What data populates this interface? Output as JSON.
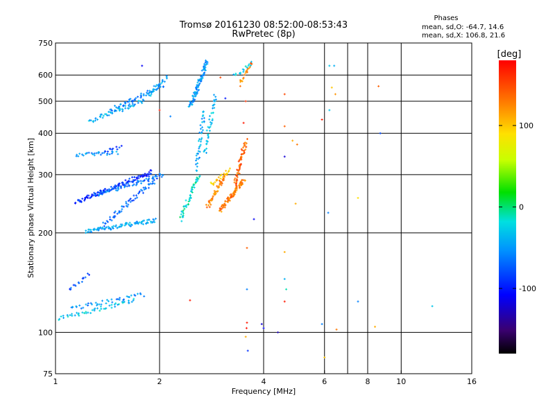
{
  "chart_data": {
    "type": "scatter",
    "title": "Tromsø 20161230 08:52:00-08:53:43",
    "subtitle": "RwPretec (8p)",
    "xlabel": "Frequency [MHz]",
    "ylabel": "Stationary phase Virtual Height [km]",
    "x_scale": "log",
    "y_scale": "log",
    "xlim": [
      1,
      16
    ],
    "ylim": [
      75,
      750
    ],
    "x_ticks": [
      1,
      2,
      4,
      6,
      8,
      10,
      16
    ],
    "x_tick_labels": [
      "1",
      "2",
      "4",
      "6",
      "8",
      "10",
      "16"
    ],
    "x_grid": [
      2,
      4,
      6,
      7,
      8,
      10
    ],
    "y_ticks": [
      75,
      100,
      200,
      300,
      400,
      500,
      600,
      750
    ],
    "y_tick_labels": [
      "75",
      "100",
      "200",
      "300",
      "400",
      "500",
      "600",
      "750"
    ],
    "grid": true,
    "phase_stats": {
      "title": "Phases",
      "line_o": "mean, sd,O: -64.7, 14.6",
      "line_x": "mean, sd,X: 106.8, 21.6"
    },
    "colorbar": {
      "label": "[deg]",
      "range": [
        -180,
        180
      ],
      "tick_values": [
        100,
        0,
        -100
      ],
      "tick_labels": [
        "100",
        "0",
        "-100"
      ]
    },
    "traces": [
      {
        "x_start": 1.22,
        "x_end": 1.95,
        "h_start": 202,
        "h_end": 218,
        "phase": -45,
        "n": 90
      },
      {
        "x_start": 1.38,
        "x_end": 1.95,
        "h_start": 212,
        "h_end": 290,
        "phase": -70,
        "n": 60
      },
      {
        "x_start": 1.15,
        "x_end": 1.9,
        "h_start": 248,
        "h_end": 305,
        "phase": -92,
        "n": 110
      },
      {
        "x_start": 1.3,
        "x_end": 2.05,
        "h_start": 260,
        "h_end": 300,
        "phase": -65,
        "n": 70
      },
      {
        "x_start": 1.15,
        "x_end": 1.5,
        "h_start": 345,
        "h_end": 350,
        "phase": -50,
        "n": 30
      },
      {
        "x_start": 1.4,
        "x_end": 1.55,
        "h_start": 355,
        "h_end": 365,
        "phase": -90,
        "n": 10
      },
      {
        "x_start": 1.25,
        "x_end": 1.8,
        "h_start": 435,
        "h_end": 500,
        "phase": -40,
        "n": 55
      },
      {
        "x_start": 1.45,
        "x_end": 2.05,
        "h_start": 470,
        "h_end": 560,
        "phase": -60,
        "n": 55
      },
      {
        "x_start": 1.85,
        "x_end": 2.1,
        "h_start": 520,
        "h_end": 590,
        "phase": -45,
        "n": 25
      },
      {
        "x_start": 2.45,
        "x_end": 2.75,
        "h_start": 480,
        "h_end": 660,
        "phase": -50,
        "n": 90
      },
      {
        "x_start": 2.7,
        "x_end": 2.9,
        "h_start": 350,
        "h_end": 520,
        "phase": -35,
        "n": 40
      },
      {
        "x_start": 2.3,
        "x_end": 2.6,
        "h_start": 220,
        "h_end": 300,
        "phase": -15,
        "n": 50
      },
      {
        "x_start": 2.55,
        "x_end": 2.7,
        "h_start": 310,
        "h_end": 470,
        "phase": -45,
        "n": 40
      },
      {
        "x_start": 2.75,
        "x_end": 3.1,
        "h_start": 240,
        "h_end": 300,
        "phase": 125,
        "n": 50
      },
      {
        "x_start": 3.0,
        "x_end": 3.5,
        "h_start": 235,
        "h_end": 290,
        "phase": 130,
        "n": 80
      },
      {
        "x_start": 3.3,
        "x_end": 3.55,
        "h_start": 280,
        "h_end": 380,
        "phase": 140,
        "n": 60
      },
      {
        "x_start": 2.8,
        "x_end": 3.2,
        "h_start": 280,
        "h_end": 310,
        "phase": 95,
        "n": 25
      },
      {
        "x_start": 3.4,
        "x_end": 3.7,
        "h_start": 560,
        "h_end": 650,
        "phase": 130,
        "n": 20
      },
      {
        "x_start": 3.3,
        "x_end": 3.7,
        "h_start": 600,
        "h_end": 650,
        "phase": -30,
        "n": 15
      },
      {
        "x_start": 1.02,
        "x_end": 1.7,
        "h_start": 110,
        "h_end": 125,
        "phase": -30,
        "n": 50
      },
      {
        "x_start": 1.1,
        "x_end": 1.8,
        "h_start": 118,
        "h_end": 130,
        "phase": -55,
        "n": 40
      },
      {
        "x_start": 1.1,
        "x_end": 1.25,
        "h_start": 135,
        "h_end": 150,
        "phase": -80,
        "n": 15
      }
    ],
    "scattered_points": [
      {
        "x": 1.78,
        "y": 640,
        "phase": -110
      },
      {
        "x": 2.0,
        "y": 470,
        "phase": 170
      },
      {
        "x": 2.15,
        "y": 450,
        "phase": -60
      },
      {
        "x": 3.0,
        "y": 590,
        "phase": 150
      },
      {
        "x": 3.1,
        "y": 510,
        "phase": -100
      },
      {
        "x": 3.55,
        "y": 500,
        "phase": 160
      },
      {
        "x": 3.5,
        "y": 430,
        "phase": 170
      },
      {
        "x": 3.75,
        "y": 220,
        "phase": -110
      },
      {
        "x": 3.58,
        "y": 180,
        "phase": 140
      },
      {
        "x": 3.58,
        "y": 135,
        "phase": -60
      },
      {
        "x": 3.58,
        "y": 107,
        "phase": 170
      },
      {
        "x": 3.57,
        "y": 103,
        "phase": 175
      },
      {
        "x": 3.6,
        "y": 88,
        "phase": -90
      },
      {
        "x": 3.55,
        "y": 97,
        "phase": 110
      },
      {
        "x": 3.95,
        "y": 106,
        "phase": -120
      },
      {
        "x": 4.0,
        "y": 103,
        "phase": -110
      },
      {
        "x": 4.4,
        "y": 100,
        "phase": -130
      },
      {
        "x": 2.45,
        "y": 125,
        "phase": 170
      },
      {
        "x": 4.6,
        "y": 525,
        "phase": 150
      },
      {
        "x": 4.6,
        "y": 420,
        "phase": 140
      },
      {
        "x": 4.85,
        "y": 380,
        "phase": 110
      },
      {
        "x": 5.0,
        "y": 370,
        "phase": 130
      },
      {
        "x": 4.6,
        "y": 340,
        "phase": -120
      },
      {
        "x": 4.95,
        "y": 245,
        "phase": 110
      },
      {
        "x": 4.6,
        "y": 175,
        "phase": 110
      },
      {
        "x": 4.6,
        "y": 145,
        "phase": -40
      },
      {
        "x": 4.65,
        "y": 135,
        "phase": -10
      },
      {
        "x": 4.6,
        "y": 124,
        "phase": 170
      },
      {
        "x": 5.9,
        "y": 440,
        "phase": 170
      },
      {
        "x": 6.2,
        "y": 640,
        "phase": -30
      },
      {
        "x": 6.4,
        "y": 640,
        "phase": -40
      },
      {
        "x": 6.3,
        "y": 550,
        "phase": 100
      },
      {
        "x": 6.45,
        "y": 525,
        "phase": 120
      },
      {
        "x": 6.2,
        "y": 470,
        "phase": -30
      },
      {
        "x": 6.15,
        "y": 230,
        "phase": -60
      },
      {
        "x": 6.5,
        "y": 102,
        "phase": 130
      },
      {
        "x": 6.0,
        "y": 84,
        "phase": 100
      },
      {
        "x": 5.9,
        "y": 106,
        "phase": -60
      },
      {
        "x": 7.5,
        "y": 255,
        "phase": 90
      },
      {
        "x": 7.5,
        "y": 124,
        "phase": -60
      },
      {
        "x": 8.4,
        "y": 104,
        "phase": 110
      },
      {
        "x": 8.6,
        "y": 555,
        "phase": 140
      },
      {
        "x": 8.7,
        "y": 400,
        "phase": -80
      },
      {
        "x": 12.3,
        "y": 120,
        "phase": -30
      }
    ]
  }
}
